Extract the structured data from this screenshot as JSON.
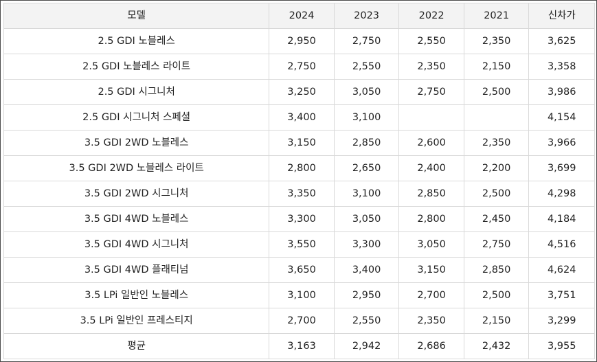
{
  "table": {
    "headers": [
      "모델",
      "2024",
      "2023",
      "2022",
      "2021",
      "신차가"
    ],
    "rows": [
      [
        "2.5 GDI 노블레스",
        "2,950",
        "2,750",
        "2,550",
        "2,350",
        "3,625"
      ],
      [
        "2.5 GDI 노블레스 라이트",
        "2,750",
        "2,550",
        "2,350",
        "2,150",
        "3,358"
      ],
      [
        "2.5 GDI 시그니처",
        "3,250",
        "3,050",
        "2,750",
        "2,500",
        "3,986"
      ],
      [
        "2.5 GDI 시그니처 스페셜",
        "3,400",
        "3,100",
        "",
        "",
        "4,154"
      ],
      [
        "3.5 GDI 2WD 노블레스",
        "3,150",
        "2,850",
        "2,600",
        "2,350",
        "3,966"
      ],
      [
        "3.5 GDI 2WD 노블레스 라이트",
        "2,800",
        "2,650",
        "2,400",
        "2,200",
        "3,699"
      ],
      [
        "3.5 GDI 2WD 시그니처",
        "3,350",
        "3,100",
        "2,850",
        "2,500",
        "4,298"
      ],
      [
        "3.5 GDI 4WD 노블레스",
        "3,300",
        "3,050",
        "2,800",
        "2,450",
        "4,184"
      ],
      [
        "3.5 GDI 4WD 시그니처",
        "3,550",
        "3,300",
        "3,050",
        "2,750",
        "4,516"
      ],
      [
        "3.5 GDI 4WD 플래티넘",
        "3,650",
        "3,400",
        "3,150",
        "2,850",
        "4,624"
      ],
      [
        "3.5 LPi 일반인 노블레스",
        "3,100",
        "2,950",
        "2,700",
        "2,500",
        "3,751"
      ],
      [
        "3.5 LPi 일반인 프레스티지",
        "2,700",
        "2,550",
        "2,350",
        "2,150",
        "3,299"
      ],
      [
        "평균",
        "3,163",
        "2,942",
        "2,686",
        "2,432",
        "3,955"
      ]
    ]
  }
}
